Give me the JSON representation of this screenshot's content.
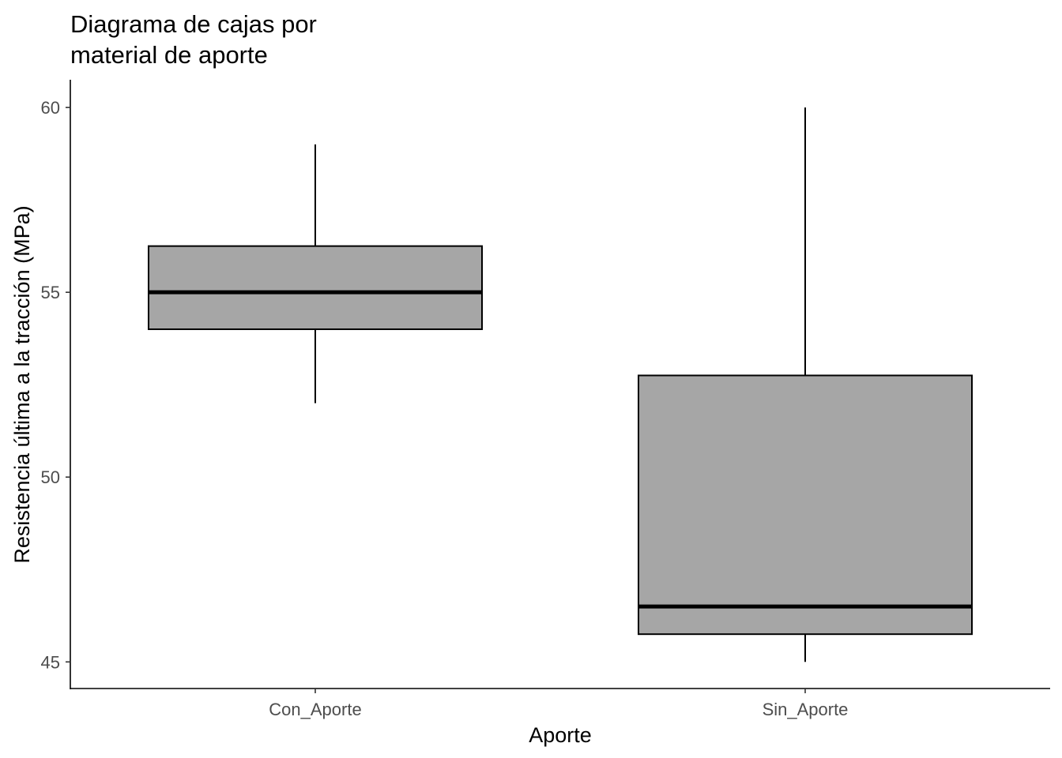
{
  "chart_data": {
    "type": "box",
    "title_lines": [
      "Diagrama de cajas por",
      "material de aporte"
    ],
    "xlabel": "Aporte",
    "ylabel": "Resistencia última a la tracción (MPa)",
    "categories": [
      "Con_Aporte",
      "Sin_Aporte"
    ],
    "boxes": [
      {
        "category": "Con_Aporte",
        "whisker_low": 52.0,
        "q1": 54.0,
        "median": 55.0,
        "q3": 56.25,
        "whisker_high": 59.0
      },
      {
        "category": "Sin_Aporte",
        "whisker_low": 45.0,
        "q1": 45.75,
        "median": 46.5,
        "q3": 52.75,
        "whisker_high": 60.0
      }
    ],
    "yticks": [
      45,
      50,
      55,
      60
    ],
    "ylim": [
      44.28,
      60.75
    ],
    "grid": false,
    "box_fill": "#a6a6a6",
    "line_color": "#000000"
  }
}
